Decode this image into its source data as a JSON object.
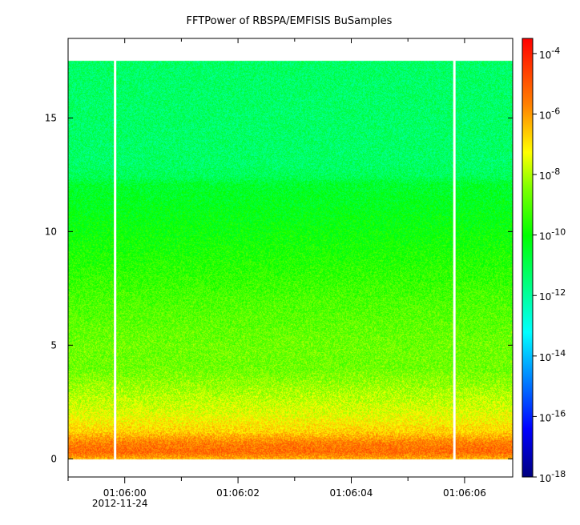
{
  "chart_data": {
    "type": "heatmap",
    "title": "FFTPower of RBSPA/EMFISIS  BuSamples",
    "x_range_seconds": [
      -1.0,
      6.85
    ],
    "x_ticks": [
      {
        "value": 0,
        "label": "01:06:00",
        "sublabel": "2012-11-24"
      },
      {
        "value": 2,
        "label": "01:06:02",
        "sublabel": ""
      },
      {
        "value": 4,
        "label": "01:06:04",
        "sublabel": ""
      },
      {
        "value": 6,
        "label": "01:06:06",
        "sublabel": ""
      }
    ],
    "x_minor_ticks": [
      -1,
      1,
      3,
      5
    ],
    "ylim": [
      -0.8,
      18.5
    ],
    "y_ticks": [
      0,
      5,
      10,
      15
    ],
    "data_y_range": [
      0,
      17.5
    ],
    "gap_x_seconds": [
      -0.17,
      5.82
    ],
    "color_scale": "log",
    "colorbar": {
      "range_exponents": [
        -18,
        -3.5
      ],
      "tick_exponents": [
        -18,
        -16,
        -14,
        -12,
        -10,
        -8,
        -6,
        -4
      ],
      "tick_labels": [
        "10-18",
        "10-16",
        "10-14",
        "10-12",
        "10-10",
        "10-8",
        "10-6",
        "10-4"
      ]
    },
    "spectral_profile": [
      {
        "y": 0.0,
        "log_power": -6.3
      },
      {
        "y": 0.3,
        "log_power": -5.3
      },
      {
        "y": 0.7,
        "log_power": -5.6
      },
      {
        "y": 1.2,
        "log_power": -6.7
      },
      {
        "y": 2.0,
        "log_power": -7.5
      },
      {
        "y": 3.0,
        "log_power": -8.1
      },
      {
        "y": 4.0,
        "log_power": -8.7
      },
      {
        "y": 5.0,
        "log_power": -8.7
      },
      {
        "y": 6.0,
        "log_power": -8.9
      },
      {
        "y": 7.0,
        "log_power": -9.1
      },
      {
        "y": 8.0,
        "log_power": -9.4
      },
      {
        "y": 9.0,
        "log_power": -9.7
      },
      {
        "y": 10.0,
        "log_power": -10.0
      },
      {
        "y": 11.0,
        "log_power": -10.3
      },
      {
        "y": 12.1,
        "log_power": -10.6
      },
      {
        "y": 12.4,
        "log_power": -11.1
      },
      {
        "y": 13.0,
        "log_power": -11.3
      },
      {
        "y": 15.0,
        "log_power": -11.3
      },
      {
        "y": 17.5,
        "log_power": -11.3
      }
    ]
  }
}
